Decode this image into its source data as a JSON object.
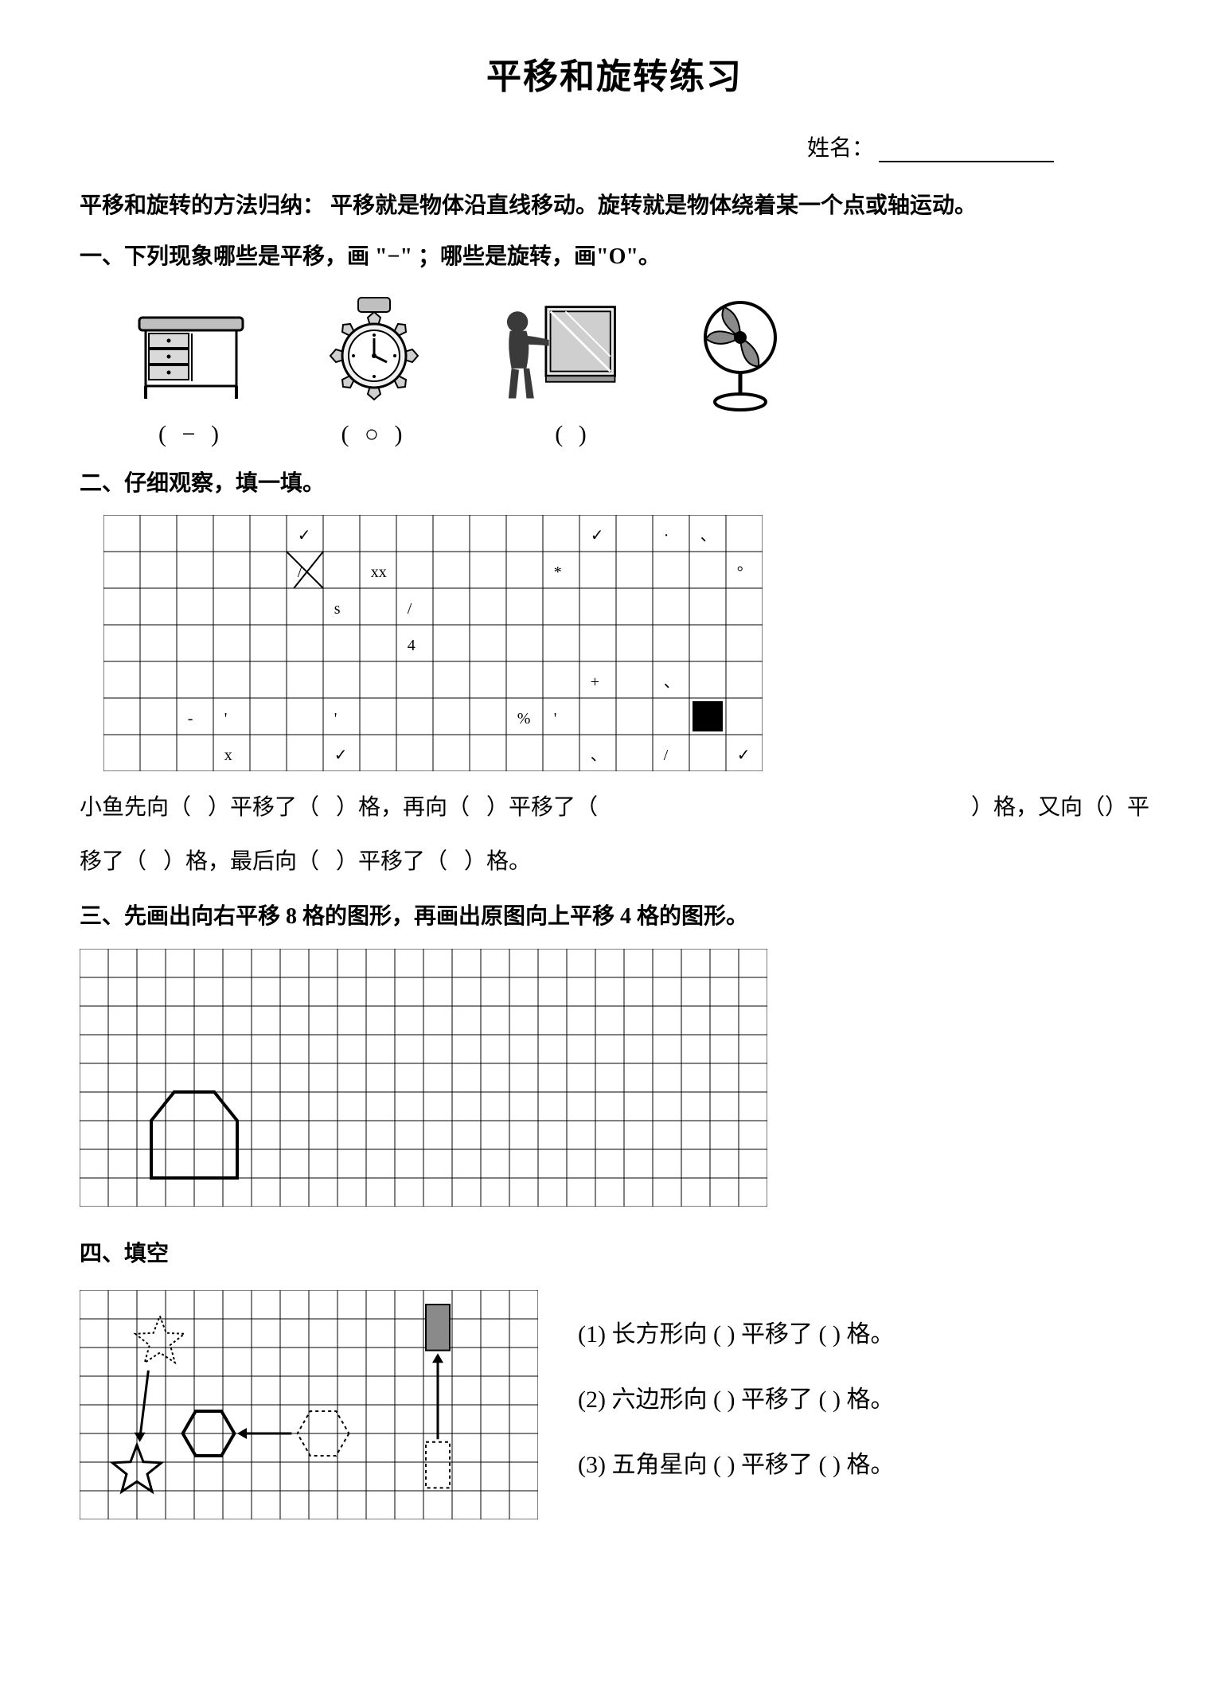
{
  "title": "平移和旋转练习",
  "name_label": "姓名：",
  "intro": "平移和旋转的方法归纳：  平移就是物体沿直线移动。旋转就是物体绕着某一个点或轴运动。",
  "q1": {
    "heading": "一、下列现象哪些是平移，画 \"−\" ；哪些是旋转，画\"O\"。",
    "answers": [
      "(   −   )",
      "(   ○   )",
      "(        )",
      ""
    ],
    "images": [
      "desk-drawer",
      "watch-gear",
      "person-window",
      "electric-fan"
    ]
  },
  "q2": {
    "heading": "二、仔细观察，填一填。",
    "grid": {
      "cols": 18,
      "rows": 7,
      "cell": 46
    },
    "line1_a": "小鱼先向（",
    "line1_b": "）平移了（",
    "line1_c": "）格，再向（",
    "line1_d": "）平移了（",
    "line1_e": "）格，又向（）平",
    "line2_a": "移了（",
    "line2_b": "）格，最后向（",
    "line2_c": "）平移了（",
    "line2_d": "）格。"
  },
  "q3": {
    "heading": "三、先画出向右平移 8 格的图形，再画出原图向上平移 4 格的图形。",
    "grid": {
      "cols": 24,
      "rows": 9,
      "cell": 36
    }
  },
  "q4": {
    "heading": "四、填空",
    "grid": {
      "cols": 16,
      "rows": 8,
      "cell": 36
    },
    "fills": [
      "(1) 长方形向 (        )  平移了 (  )  格。",
      "(2) 六边形向 (        )  平移了 (  )  格。",
      "(3) 五角星向 (        )  平移了 (  )  格。"
    ]
  },
  "colors": {
    "stroke": "#000000",
    "bg": "#ffffff",
    "gray_fill": "#8a8a8a",
    "light_gray": "#bdbdbd",
    "dark_gray": "#3a3a3a"
  }
}
